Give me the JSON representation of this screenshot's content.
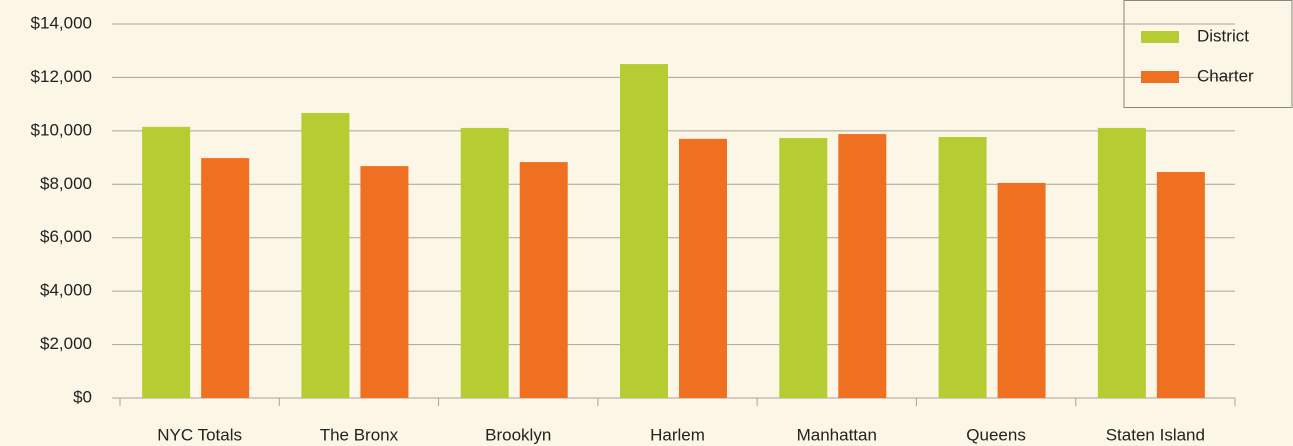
{
  "chart_data": {
    "type": "bar",
    "categories": [
      "NYC Totals",
      "The Bronx",
      "Brooklyn",
      "Harlem",
      "Manhattan",
      "Queens",
      "Staten Island"
    ],
    "series": [
      {
        "name": "District",
        "color": "#b6cc33",
        "values": [
          10150,
          10670,
          10110,
          12500,
          9730,
          9770,
          10110
        ]
      },
      {
        "name": "Charter",
        "color": "#f07022",
        "values": [
          8980,
          8680,
          8830,
          9700,
          9880,
          8050,
          8460
        ]
      }
    ],
    "ylim": [
      0,
      14000
    ],
    "yticks": [
      {
        "value": 0,
        "label": "$0"
      },
      {
        "value": 2000,
        "label": "$2,000"
      },
      {
        "value": 4000,
        "label": "$4,000"
      },
      {
        "value": 6000,
        "label": "$6,000"
      },
      {
        "value": 8000,
        "label": "$8,000"
      },
      {
        "value": 10000,
        "label": "$10,000"
      },
      {
        "value": 12000,
        "label": "$12,000"
      },
      {
        "value": 14000,
        "label": "$14,000"
      }
    ],
    "grid": true,
    "legend": "top-right"
  }
}
